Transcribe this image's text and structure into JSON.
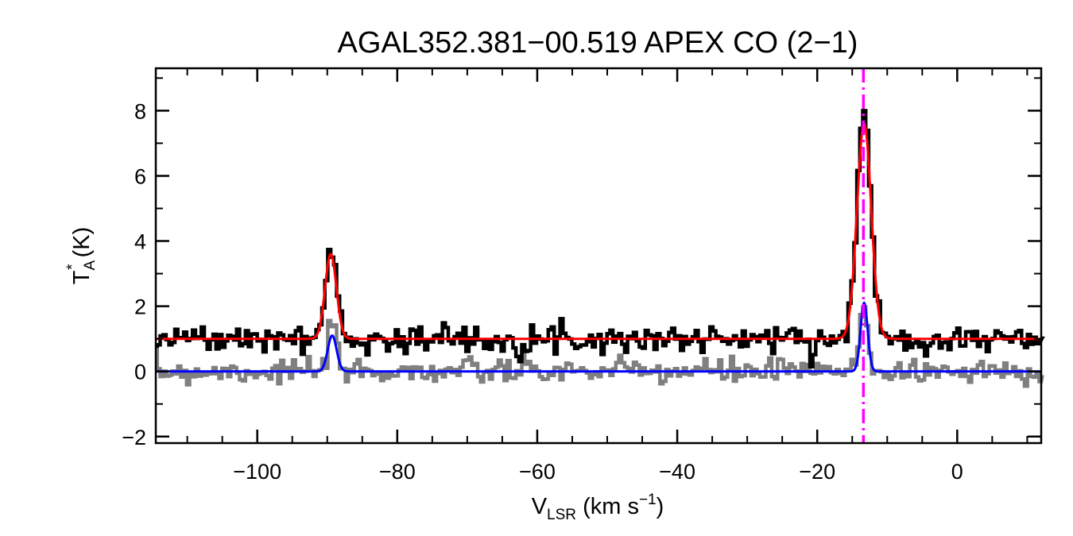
{
  "chart_data": {
    "type": "line",
    "title": "AGAL352.381−00.519  APEX CO (2−1)",
    "xlabel": {
      "main": "V",
      "sub": "LSR",
      "unit_open": " (km s",
      "unit_sup": "−1",
      "unit_close": ")"
    },
    "ylabel": {
      "main": "T",
      "sup": "*",
      "sub": "A",
      "unit": " (K)"
    },
    "xlim": [
      -114.5,
      12
    ],
    "ylim": [
      -2.2,
      9.3
    ],
    "xticks": [
      -100,
      -80,
      -60,
      -40,
      -20,
      0
    ],
    "xtick_labels": [
      "−100",
      "−80",
      "−60",
      "−40",
      "−20",
      "0"
    ],
    "yticks": [
      -2,
      0,
      2,
      4,
      6,
      8
    ],
    "ytick_labels": [
      "−2",
      "0",
      "2",
      "4",
      "6",
      "8"
    ],
    "x_minor_step": 5,
    "y_minor_step": 1,
    "grid": false,
    "colors": {
      "data_raw": "#000000",
      "data_residual": "#808080",
      "fit_total": "#ff0000",
      "fit_components": "#0000ff",
      "vlsr_marker": "#ff00ff"
    },
    "vlsr_marker": -13.4,
    "series": [
      {
        "role": "observed spectrum (offset +1 K)",
        "style": "step",
        "color": "#000000",
        "offset": 1.0,
        "noise_rms": 0.2
      },
      {
        "role": "spectrum baseline",
        "style": "step",
        "color": "#808080",
        "offset": 0.0,
        "noise_rms": 0.2
      },
      {
        "role": "gaussian fit (offset +1 K)",
        "style": "line",
        "color": "#ff0000",
        "offset": 1.0,
        "components": [
          {
            "center": -89.5,
            "amplitude": 2.6,
            "fwhm": 1.9
          },
          {
            "center": -13.3,
            "amplitude": 6.6,
            "fwhm": 2.4
          }
        ]
      },
      {
        "role": "gaussian fit",
        "style": "line",
        "color": "#0000ff",
        "offset": 0.0,
        "components": [
          {
            "center": -89.3,
            "amplitude": 1.1,
            "fwhm": 1.5
          },
          {
            "center": -13.3,
            "amplitude": 2.1,
            "fwhm": 1.2
          }
        ]
      }
    ]
  }
}
